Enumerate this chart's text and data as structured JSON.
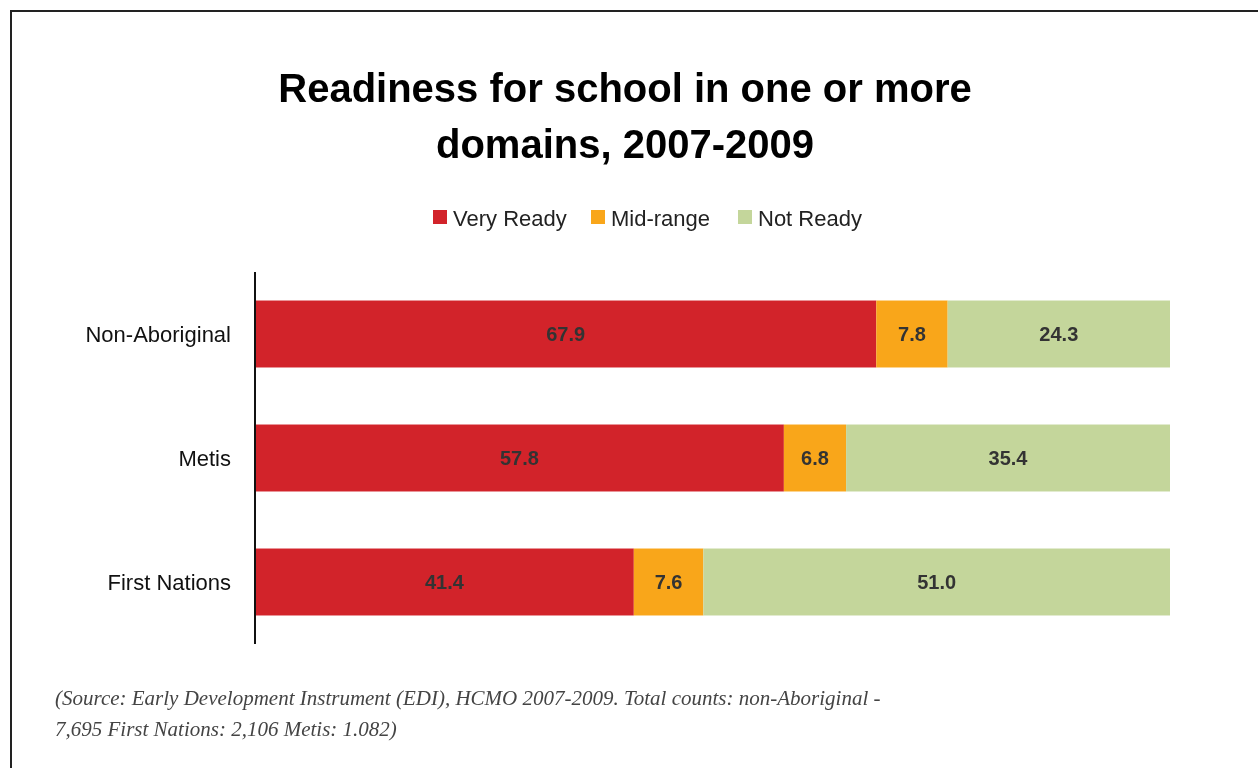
{
  "chart_data": {
    "type": "bar",
    "orientation": "horizontal",
    "stacked": true,
    "title": "Readiness for school in one or more domains, 2007-2009",
    "categories": [
      "Non-Aboriginal",
      "Metis",
      "First Nations"
    ],
    "series": [
      {
        "name": "Very Ready",
        "color": "#d2232a",
        "values": [
          67.9,
          57.8,
          41.4
        ],
        "value_labels": [
          "67.9",
          "57.8",
          "41.4"
        ]
      },
      {
        "name": "Mid-range",
        "color": "#f9a61a",
        "values": [
          7.8,
          6.8,
          7.6
        ],
        "value_labels": [
          "7.8",
          "6.8",
          "7.6"
        ]
      },
      {
        "name": "Not Ready",
        "color": "#c4d69b",
        "values": [
          24.3,
          35.4,
          51.0
        ],
        "value_labels": [
          "24.3",
          "35.4",
          "51.0"
        ]
      }
    ],
    "xlim": [
      0,
      100
    ],
    "legend": "top",
    "tick_labels": "y",
    "annotations": [
      "(Source: Early Development Instrument (EDI), HCMO 2007-2009. Total counts: non-Aboriginal - 7,695 First Nations: 2,106 Metis: 1.082)"
    ]
  }
}
